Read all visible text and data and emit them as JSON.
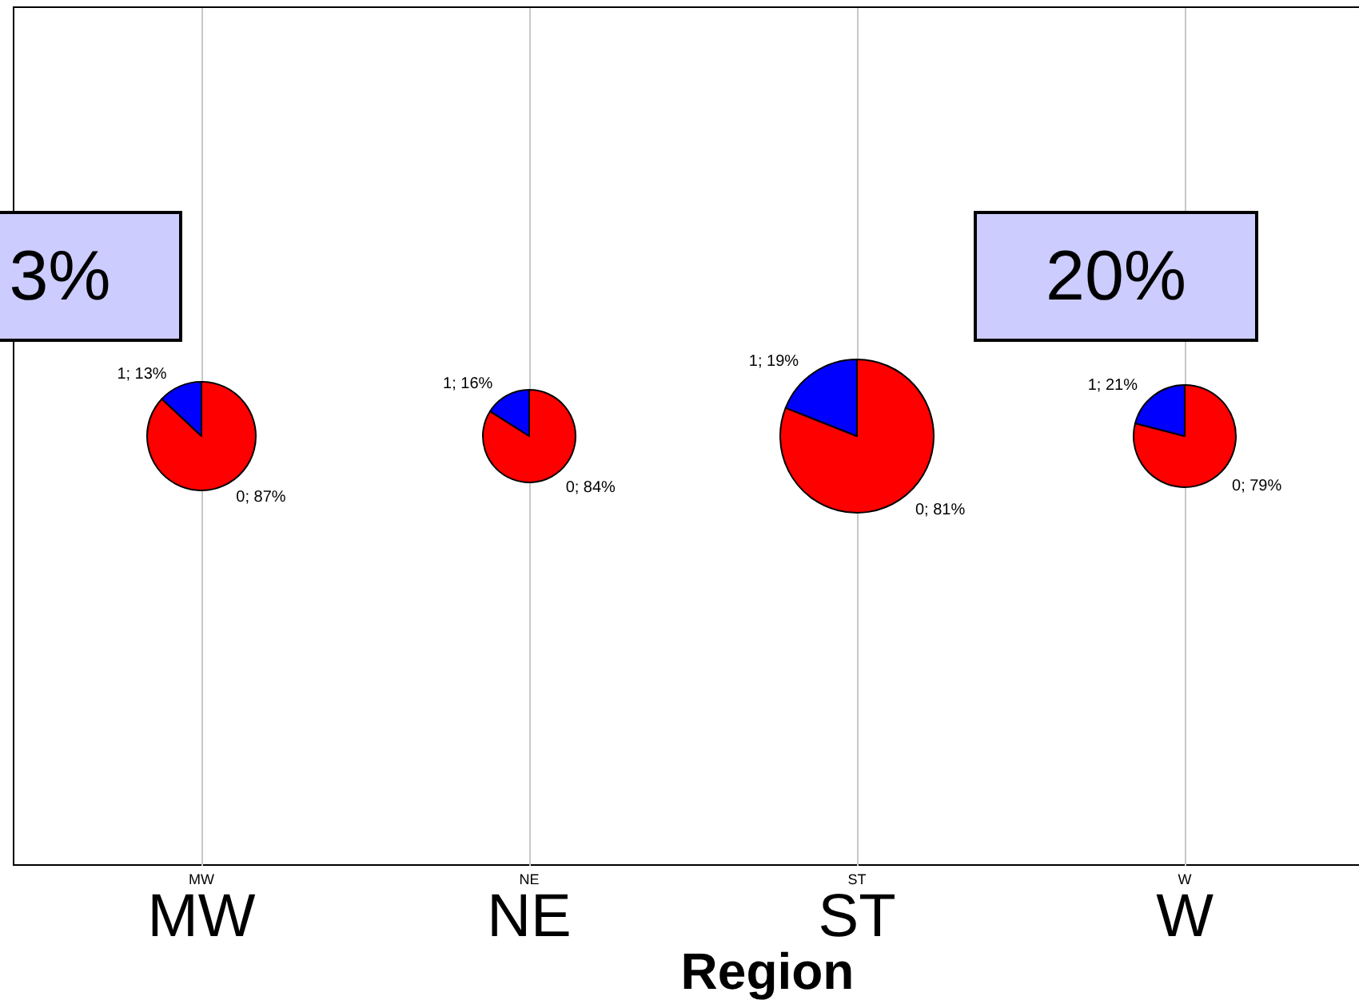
{
  "chart_data": [
    {
      "type": "pie",
      "title": "MW",
      "subtitle": "MW",
      "categories": [
        "0",
        "1"
      ],
      "values": [
        87,
        13
      ],
      "colors": [
        "#ff0000",
        "#0000ff"
      ],
      "value_labels": [
        "; 87%",
        "; 13%"
      ],
      "annotations": [
        "3%"
      ]
    },
    {
      "type": "pie",
      "title": "NE",
      "subtitle": "NE",
      "xlabel": "Region",
      "categories": [
        "0",
        "1"
      ],
      "values": [
        84,
        16
      ],
      "colors": [
        "#ff0000",
        "#0000ff"
      ],
      "value_labels": [
        "; 84%",
        "; 16%"
      ]
    },
    {
      "type": "pie",
      "title": "ST",
      "subtitle": "ST",
      "categories": [
        "0",
        "1"
      ],
      "values": [
        81,
        19
      ],
      "colors": [
        "#ff0000",
        "#0000ff"
      ],
      "value_labels": [
        "; 81%",
        "; 19%"
      ]
    },
    {
      "type": "pie",
      "title": "W",
      "subtitle": "W",
      "categories": [
        "0",
        "1"
      ],
      "values": [
        79,
        21
      ],
      "colors": [
        "#ff0000",
        "#0000ff"
      ],
      "value_labels": [
        "; 79%",
        "; 21%"
      ],
      "annotations": [
        "20%"
      ]
    }
  ]
}
